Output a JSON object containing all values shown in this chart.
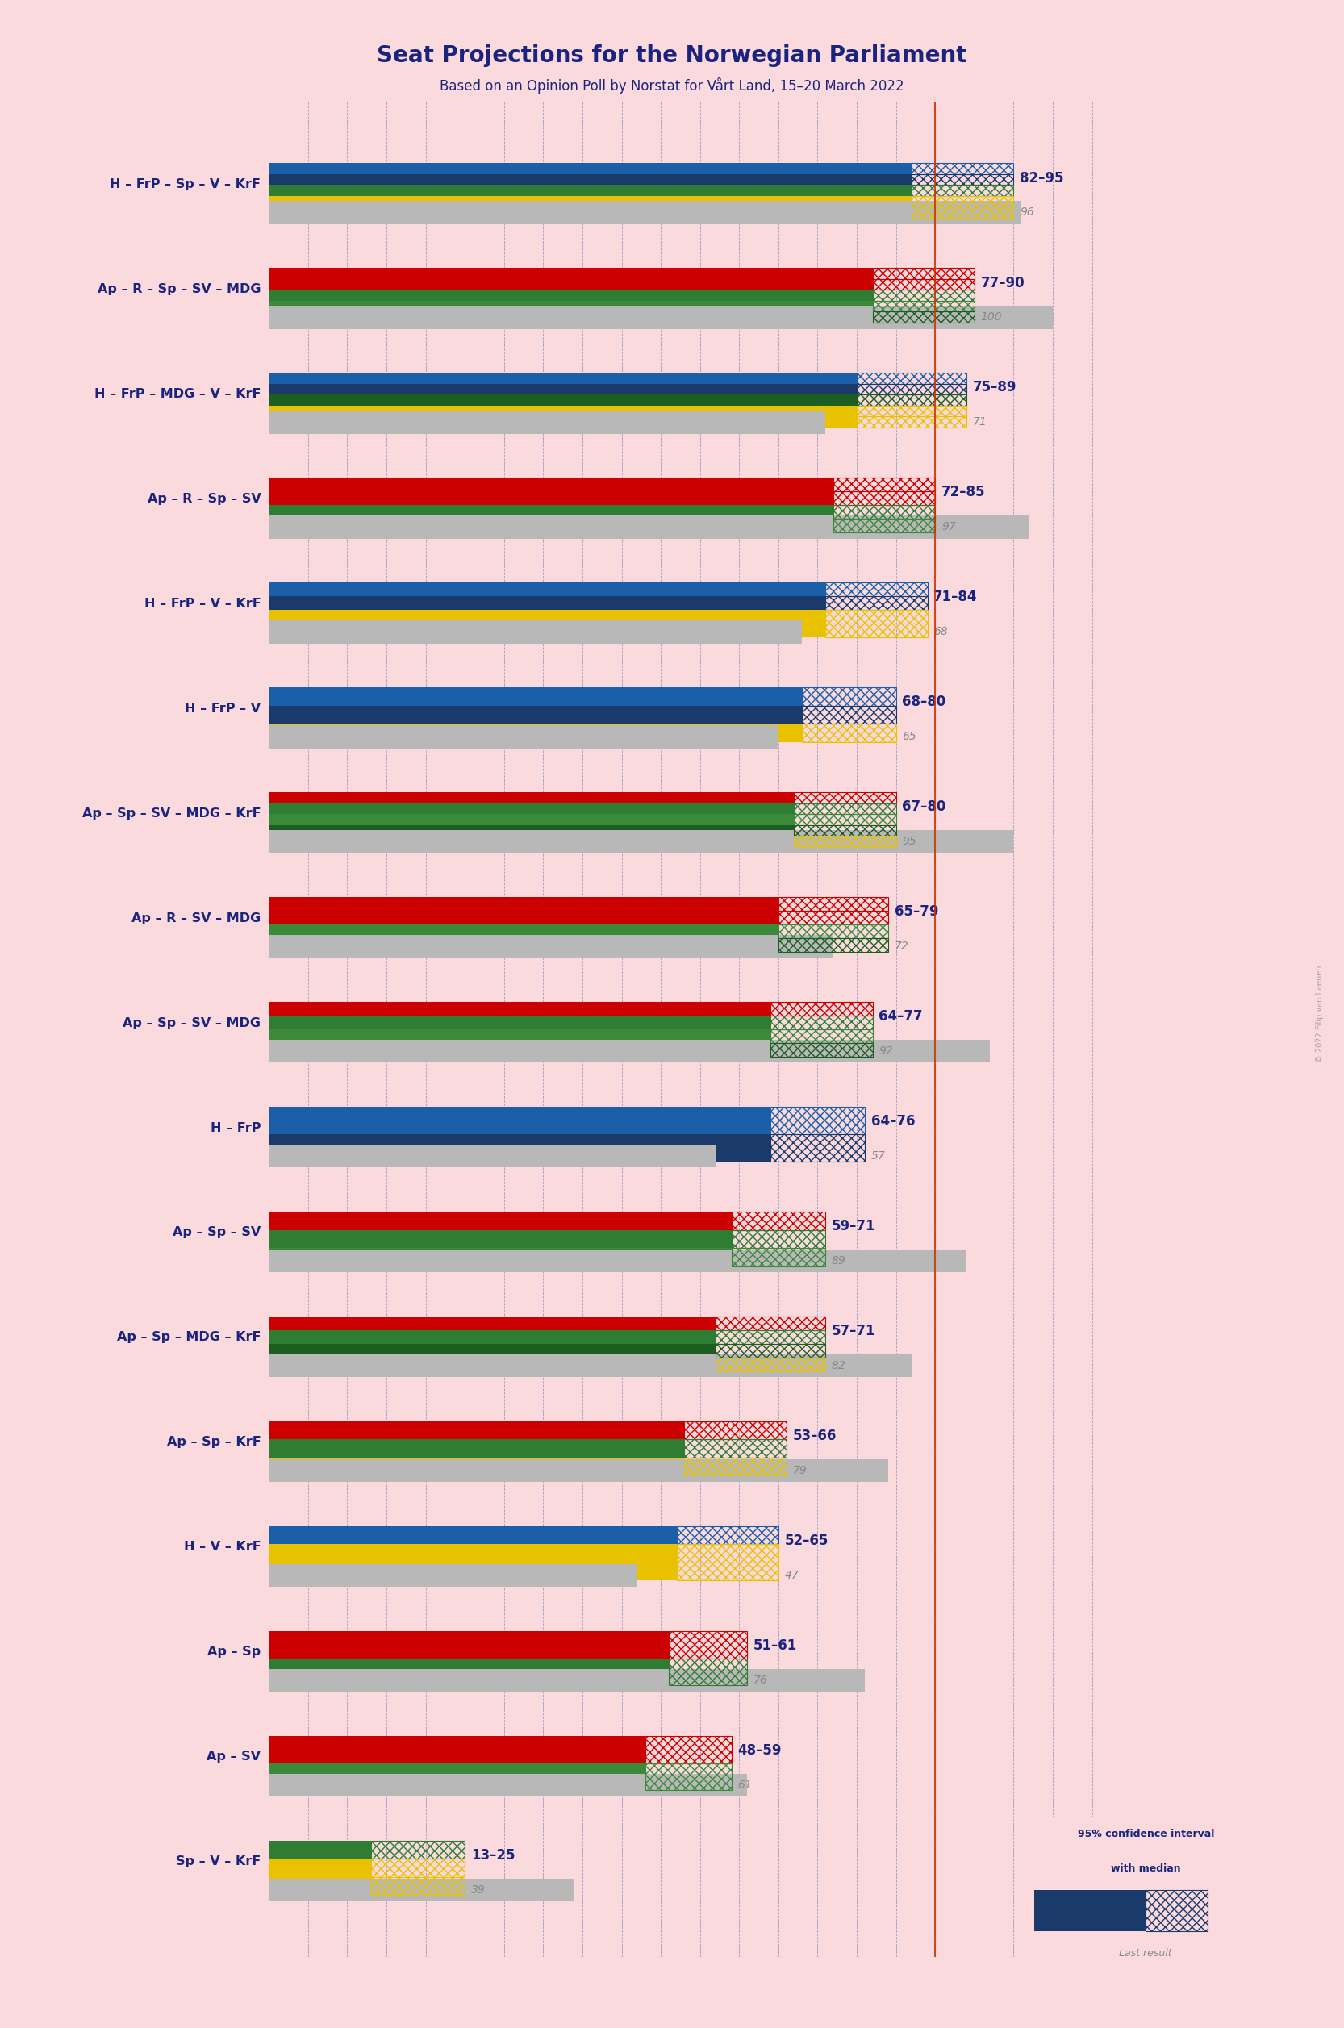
{
  "title": "Seat Projections for the Norwegian Parliament",
  "subtitle": "Based on an Opinion Poll by Norstat for Vårt Land, 15–20 March 2022",
  "background_color": "#fadadd",
  "title_color": "#1a237e",
  "majority_line": 85,
  "x_max": 108,
  "coalitions": [
    {
      "name": "H – FrP – Sp – V – KrF",
      "ci_low": 82,
      "ci_high": 95,
      "last": 96,
      "parties": [
        "H",
        "FrP",
        "Sp",
        "V",
        "KrF"
      ],
      "underline": false
    },
    {
      "name": "Ap – R – Sp – SV – MDG",
      "ci_low": 77,
      "ci_high": 90,
      "last": 100,
      "parties": [
        "Ap",
        "R",
        "Sp",
        "SV",
        "MDG"
      ],
      "underline": false
    },
    {
      "name": "H – FrP – MDG – V – KrF",
      "ci_low": 75,
      "ci_high": 89,
      "last": 71,
      "parties": [
        "H",
        "FrP",
        "MDG",
        "V",
        "KrF"
      ],
      "underline": false
    },
    {
      "name": "Ap – R – Sp – SV",
      "ci_low": 72,
      "ci_high": 85,
      "last": 97,
      "parties": [
        "Ap",
        "R",
        "Sp",
        "SV"
      ],
      "underline": false
    },
    {
      "name": "H – FrP – V – KrF",
      "ci_low": 71,
      "ci_high": 84,
      "last": 68,
      "parties": [
        "H",
        "FrP",
        "V",
        "KrF"
      ],
      "underline": false
    },
    {
      "name": "H – FrP – V",
      "ci_low": 68,
      "ci_high": 80,
      "last": 65,
      "parties": [
        "H",
        "FrP",
        "V"
      ],
      "underline": false
    },
    {
      "name": "Ap – Sp – SV – MDG – KrF",
      "ci_low": 67,
      "ci_high": 80,
      "last": 95,
      "parties": [
        "Ap",
        "Sp",
        "SV",
        "MDG",
        "KrF"
      ],
      "underline": false
    },
    {
      "name": "Ap – R – SV – MDG",
      "ci_low": 65,
      "ci_high": 79,
      "last": 72,
      "parties": [
        "Ap",
        "R",
        "SV",
        "MDG"
      ],
      "underline": false
    },
    {
      "name": "Ap – Sp – SV – MDG",
      "ci_low": 64,
      "ci_high": 77,
      "last": 92,
      "parties": [
        "Ap",
        "Sp",
        "SV",
        "MDG"
      ],
      "underline": false
    },
    {
      "name": "H – FrP",
      "ci_low": 64,
      "ci_high": 76,
      "last": 57,
      "parties": [
        "H",
        "FrP"
      ],
      "underline": false
    },
    {
      "name": "Ap – Sp – SV",
      "ci_low": 59,
      "ci_high": 71,
      "last": 89,
      "parties": [
        "Ap",
        "Sp",
        "SV"
      ],
      "underline": false
    },
    {
      "name": "Ap – Sp – MDG – KrF",
      "ci_low": 57,
      "ci_high": 71,
      "last": 82,
      "parties": [
        "Ap",
        "Sp",
        "MDG",
        "KrF"
      ],
      "underline": false
    },
    {
      "name": "Ap – Sp – KrF",
      "ci_low": 53,
      "ci_high": 66,
      "last": 79,
      "parties": [
        "Ap",
        "Sp",
        "KrF"
      ],
      "underline": false
    },
    {
      "name": "H – V – KrF",
      "ci_low": 52,
      "ci_high": 65,
      "last": 47,
      "parties": [
        "H",
        "V",
        "KrF"
      ],
      "underline": false
    },
    {
      "name": "Ap – Sp",
      "ci_low": 51,
      "ci_high": 61,
      "last": 76,
      "parties": [
        "Ap",
        "Sp"
      ],
      "underline": false
    },
    {
      "name": "Ap – SV",
      "ci_low": 48,
      "ci_high": 59,
      "last": 61,
      "parties": [
        "Ap",
        "SV"
      ],
      "underline": true
    },
    {
      "name": "Sp – V – KrF",
      "ci_low": 13,
      "ci_high": 25,
      "last": 39,
      "parties": [
        "Sp",
        "V",
        "KrF"
      ],
      "underline": false
    }
  ],
  "party_colors": {
    "H": "#1a5fa8",
    "FrP": "#1a3a6b",
    "Sp": "#2e7d32",
    "V": "#e8c200",
    "KrF": "#e8c200",
    "Ap": "#cc0000",
    "R": "#cc0000",
    "SV": "#3a8a3a",
    "MDG": "#1b5e20"
  },
  "legend_ci_color": "#1a3a6b",
  "legend_last_color": "#1a3a6b",
  "majority_color": "#cc3300",
  "grid_color": "#5566aa",
  "last_bar_color": "#b8b8b8",
  "range_label_color": "#1a237e",
  "last_label_color": "#888888"
}
